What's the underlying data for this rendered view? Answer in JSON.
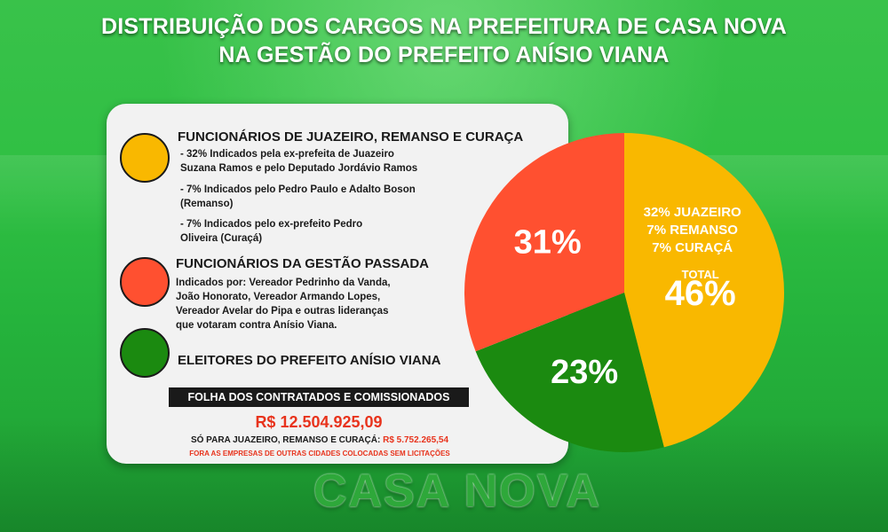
{
  "header": {
    "title_line1": "DISTRIBUIÇÃO DOS CARGOS NA PREFEITURA DE CASA NOVA",
    "title_line2": "NA GESTÃO DO PREFEITO ANÍSIO VIANA"
  },
  "legend": {
    "cat1": {
      "title": "FUNCIONÁRIOS DE JUAZEIRO, REMANSO E CURAÇA",
      "items": [
        "-    32% Indicados pela ex-prefeita de Juazeiro",
        "Suzana Ramos e pelo Deputado Jordávio Ramos",
        "-    7%  Indicados pelo Pedro Paulo e Adalto Boson",
        "(Remanso)",
        "-    7%  Indicados pelo ex-prefeito Pedro",
        "Oliveira (Curaçá)"
      ]
    },
    "cat2": {
      "title": "FUNCIONÁRIOS DA GESTÃO PASSADA",
      "items": [
        "Indicados por: Vereador Pedrinho da Vanda,",
        "João Honorato, Vereador Armando Lopes,",
        "Vereador Avelar do Pipa e outras lideranças",
        "que votaram contra Anísio Viana."
      ]
    },
    "cat3": {
      "title": "ELEITORES DO PREFEITO ANÍSIO VIANA"
    }
  },
  "footer": {
    "folha_label": "FOLHA DOS CONTRATADOS E COMISSIONADOS",
    "total_amount": "R$ 12.504.925,09",
    "sub_label": "SÓ PARA JUAZEIRO, REMANSO E CURAÇÁ:",
    "sub_amount": "R$ 5.752.265,54",
    "note": "FORA AS EMPRESAS DE OUTRAS CIDADES COLOCADAS SEM LICITAÇÕES"
  },
  "logo_text": "CASA NOVA",
  "chart_data": {
    "type": "pie",
    "start": "top",
    "direction": "clockwise",
    "slices": [
      {
        "value": 46,
        "color": "#f9b800",
        "labels": [
          "32% JUAZEIRO",
          "7% REMANSO",
          "7% CURAÇÁ",
          "TOTAL",
          "46%"
        ]
      },
      {
        "value": 23,
        "color": "#1b8a10",
        "labels": [
          "23%"
        ]
      },
      {
        "value": 31,
        "color": "#ff5030",
        "labels": [
          "31%"
        ]
      }
    ]
  },
  "colors": {
    "yellow": "#f9b800",
    "red": "#ff5030",
    "green": "#1b8a10"
  }
}
